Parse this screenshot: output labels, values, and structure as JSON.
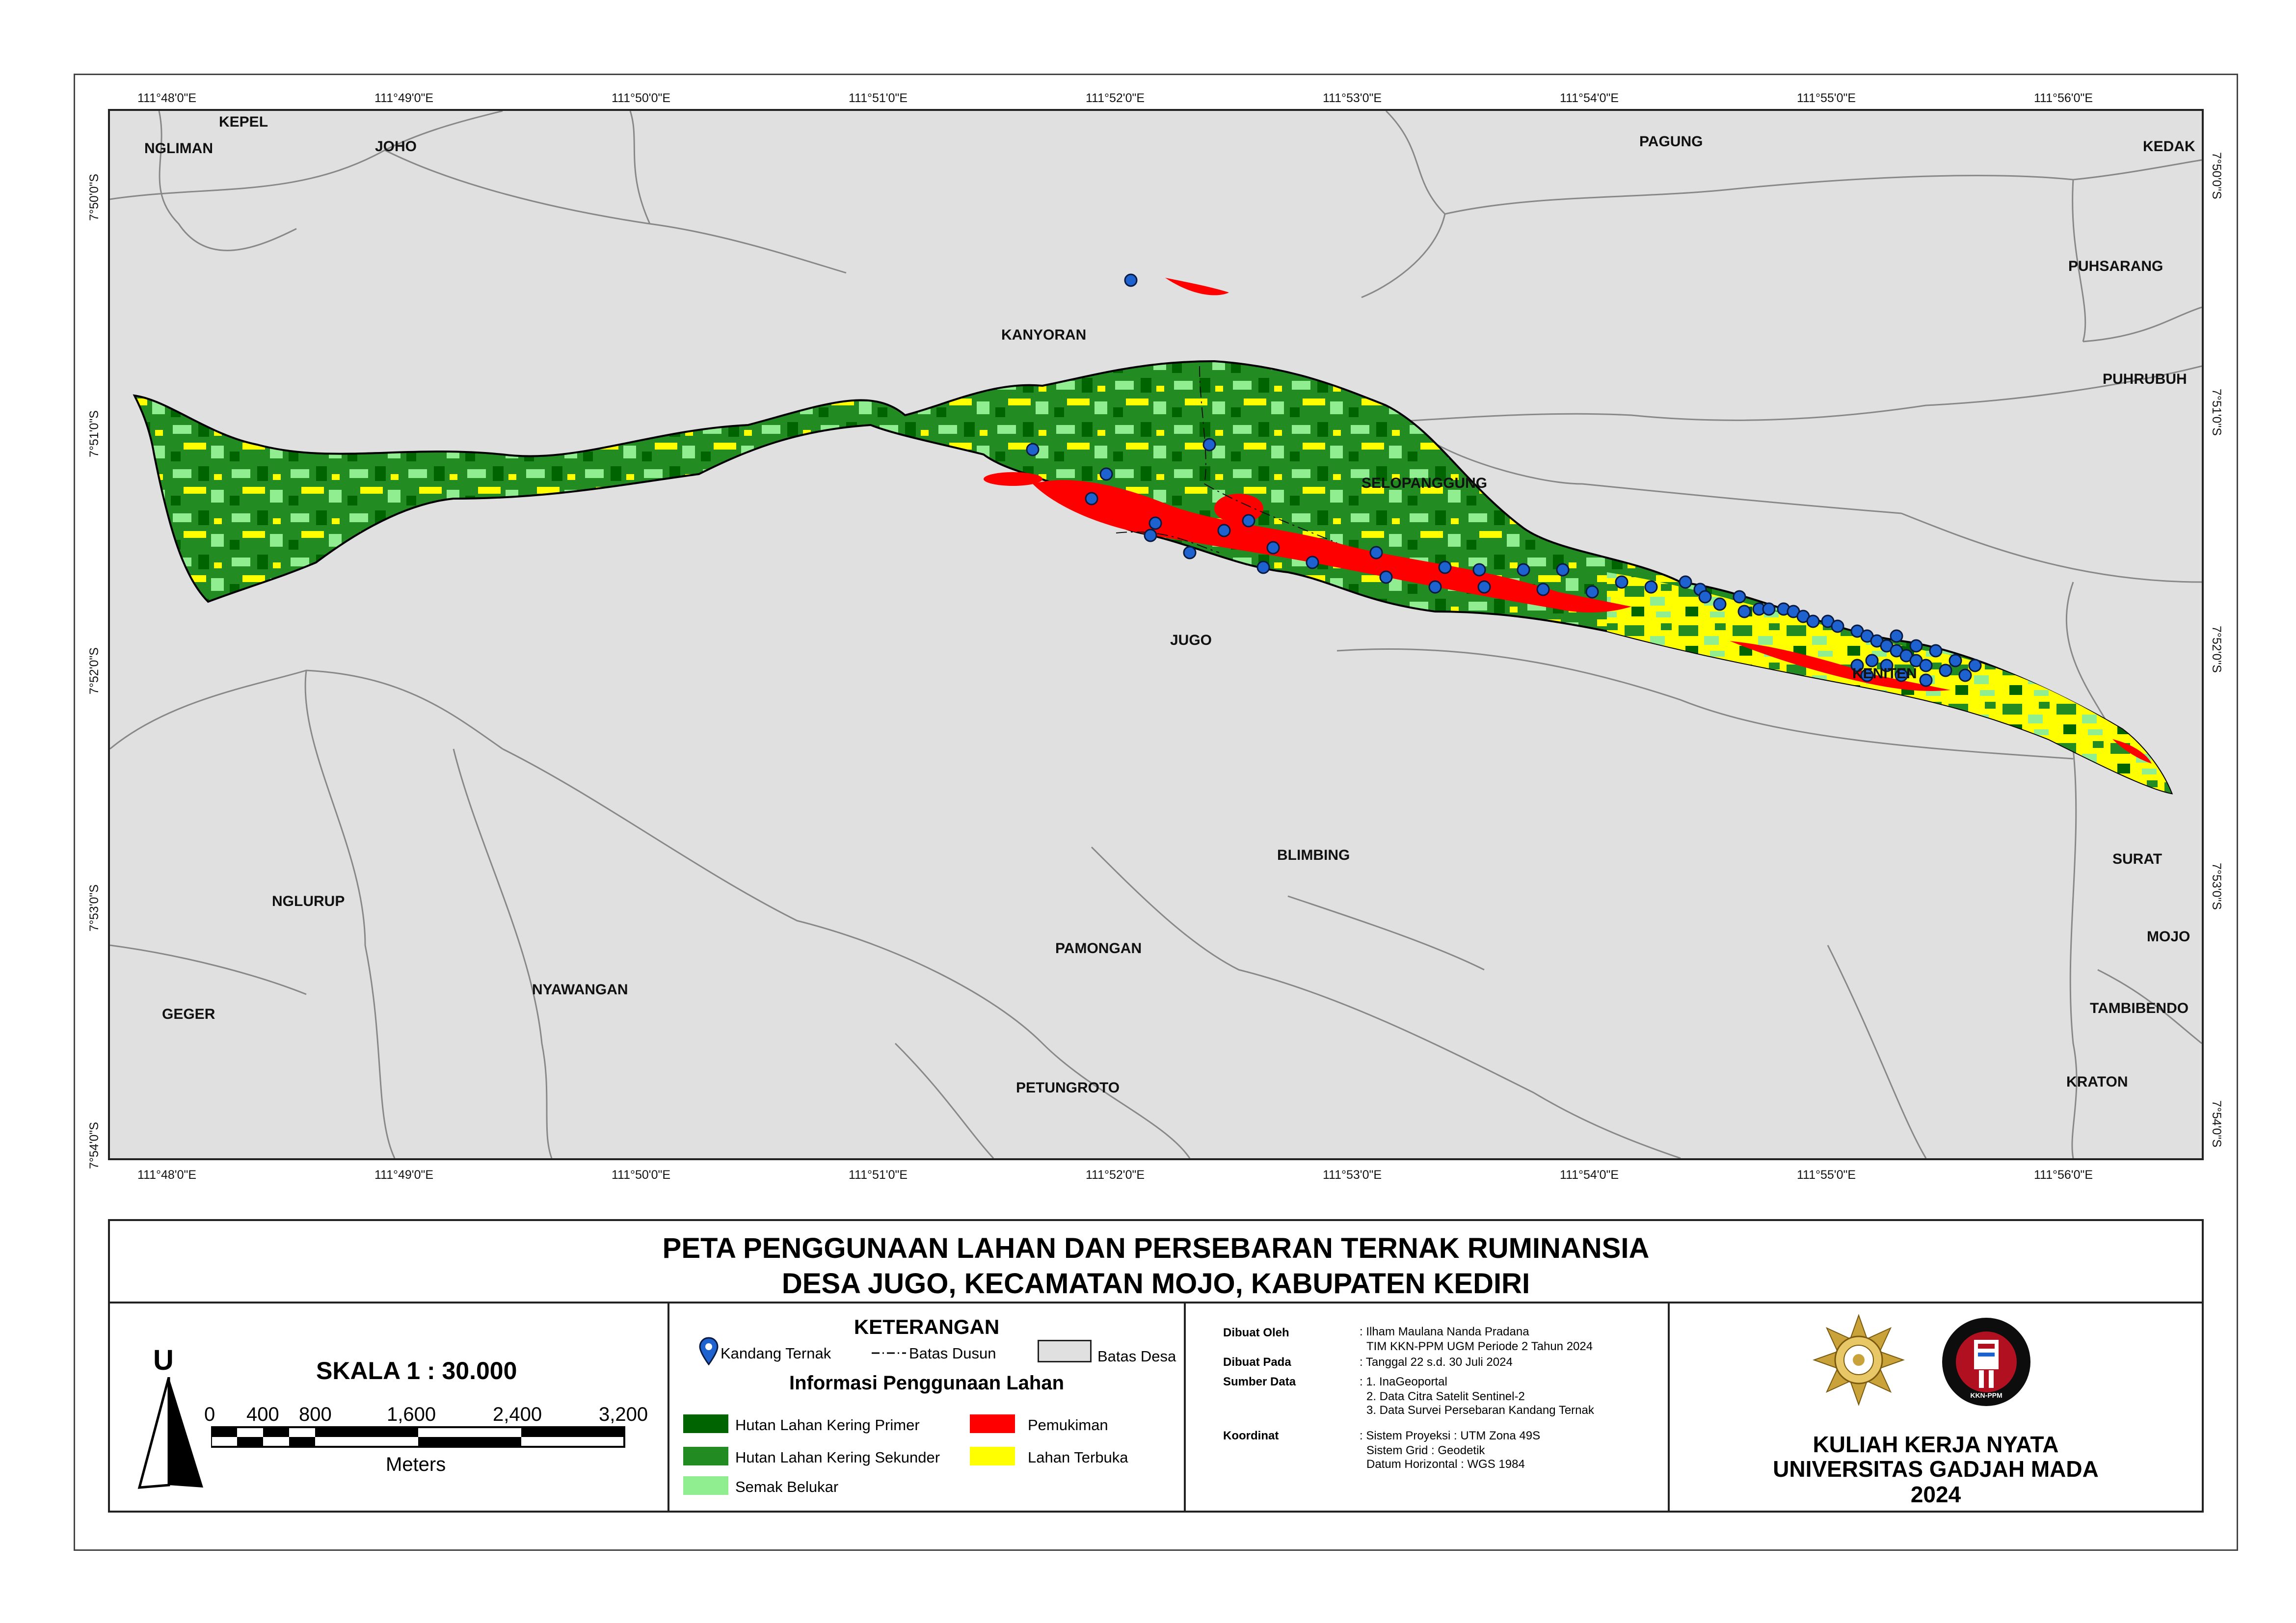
{
  "colors": {
    "primary_forest": "#006400",
    "secondary_forest": "#228b22",
    "shrub": "#90ee90",
    "settlement": "#ff0000",
    "open_land": "#ffff00",
    "marker": "#1e62d0",
    "background": "#e0e0e0",
    "boundary_line": "#888888"
  },
  "map": {
    "top_lon_labels": [
      "111°48'0\"E",
      "111°49'0\"E",
      "111°50'0\"E",
      "111°51'0\"E",
      "111°52'0\"E",
      "111°53'0\"E",
      "111°54'0\"E",
      "111°55'0\"E",
      "111°56'0\"E"
    ],
    "bottom_lon_labels": [
      "111°48'0\"E",
      "111°49'0\"E",
      "111°50'0\"E",
      "111°51'0\"E",
      "111°52'0\"E",
      "111°53'0\"E",
      "111°54'0\"E",
      "111°55'0\"E",
      "111°56'0\"E"
    ],
    "left_lat_labels": [
      "7°50'0\"S",
      "7°51'0\"S",
      "7°52'0\"S",
      "7°53'0\"S",
      "7°54'0\"S"
    ],
    "right_lat_labels": [
      "7°50'0\"S",
      "7°51'0\"S",
      "7°52'0\"S",
      "7°53'0\"S",
      "7°54'0\"S"
    ],
    "villages": [
      "KEPEL",
      "NGLIMAN",
      "JOHO",
      "PAGUNG",
      "KEDAK",
      "PUHSARANG",
      "KANYORAN",
      "PUHRUBUH",
      "SELOPANGGUNG",
      "JUGO",
      "KENITEN",
      "BLIMBING",
      "SURAT",
      "MOJO",
      "TAMBIBENDO",
      "NGLURUP",
      "PAMONGAN",
      "NYAWANGAN",
      "GEGER",
      "PETUNGROTO",
      "KRATON"
    ]
  },
  "title": {
    "line1": "PETA PENGGUNAAN LAHAN DAN PERSEBARAN TERNAK RUMINANSIA",
    "line2": "DESA JUGO, KECAMATAN MOJO, KABUPATEN KEDIRI"
  },
  "scale": {
    "north": "U",
    "label": "SKALA 1 : 30.000",
    "ticks": [
      "0",
      "400",
      "800",
      "1,600",
      "2,400",
      "3,200"
    ],
    "unit": "Meters"
  },
  "legend": {
    "heading": "KETERANGAN",
    "kandang": "Kandang Ternak",
    "dusun": "Batas Dusun",
    "desa": "Batas Desa",
    "landuse_heading": "Informasi Penggunaan Lahan",
    "primer": "Hutan Lahan Kering Primer",
    "sekunder": "Hutan Lahan Kering Sekunder",
    "semak": "Semak Belukar",
    "pemukiman": "Pemukiman",
    "terbuka": "Lahan Terbuka"
  },
  "info": {
    "dibuat_oleh_label": "Dibuat Oleh",
    "dibuat_oleh_1": ": Ilham Maulana Nanda Pradana",
    "dibuat_oleh_2": "TIM KKN-PPM UGM Periode 2 Tahun 2024",
    "dibuat_pada_label": "Dibuat Pada",
    "dibuat_pada": ": Tanggal 22 s.d. 30 Juli 2024",
    "sumber_label": "Sumber Data",
    "sumber_1": ": 1. InaGeoportal",
    "sumber_2": "2. Data Citra Satelit Sentinel-2",
    "sumber_3": "3. Data Survei Persebaran Kandang Ternak",
    "koordinat_label": "Koordinat",
    "koordinat_1": ": Sistem Proyeksi : UTM Zona 49S",
    "koordinat_2": "Sistem Grid : Geodetik",
    "koordinat_3": "Datum Horizontal : WGS 1984"
  },
  "institution": {
    "line1": "KULIAH KERJA NYATA",
    "line2": "UNIVERSITAS GADJAH MADA",
    "line3": "2024",
    "logo_text": "KKN-PPM"
  }
}
